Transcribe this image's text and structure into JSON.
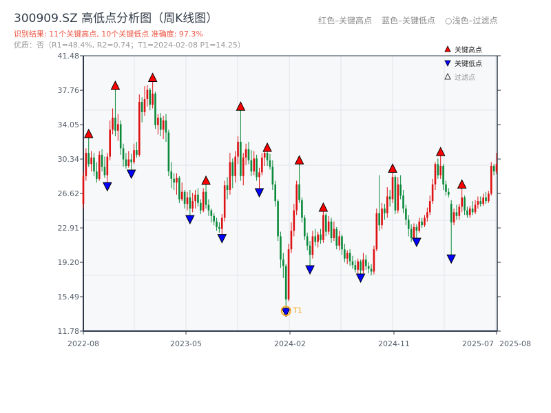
{
  "title": "300909.SZ 高低点分析图（周K线图）",
  "result_line": "识别结果: 11个关键高点, 10个关键低点   准确度: 97.3%",
  "quality_line": "优质：否（R1=48.4%, R2=0.74；T1=2024-02-08 P1=14.25）",
  "top_hint": {
    "red": "红色–关键高点",
    "blue": "蓝色–关键低点",
    "light": "○浅色–过滤点"
  },
  "legend": [
    {
      "label": "关键高点",
      "color": "#ff0000",
      "shape": "triangle-up"
    },
    {
      "label": "关键低点",
      "color": "#0000ff",
      "shape": "triangle-down"
    },
    {
      "label": "过滤点",
      "color": "#ffffff",
      "shape": "triangle-up-outline"
    }
  ],
  "colors": {
    "up": "#dd1111",
    "down": "#0a8a3a",
    "high": "#ff0000",
    "low": "#0000ff",
    "t1": "#f5a623",
    "bg": "#f7f8fa"
  },
  "chart_data": {
    "type": "candlestick",
    "title": "300909.SZ 高低点分析图（周K线图）",
    "ylim": [
      11.78,
      41.48
    ],
    "yticks": [
      "11.78",
      "15.49",
      "19.20",
      "22.91",
      "26.62",
      "30.34",
      "34.05",
      "37.76",
      "41.48"
    ],
    "xticks": [
      {
        "label": "2022-08",
        "i": 0
      },
      {
        "label": "2023-05",
        "i": 38.5
      },
      {
        "label": "2024-02",
        "i": 77.5
      },
      {
        "label": "2024-11",
        "i": 116.5
      },
      {
        "label": "2025-07",
        "i": 155
      },
      {
        "label": "2025-08",
        "i": 155
      }
    ],
    "grid": true,
    "legend_position": "top-right",
    "ohlc": [
      [
        25.5,
        29,
        25,
        28.5
      ],
      [
        28.5,
        31.5,
        28,
        31
      ],
      [
        31,
        32.64,
        29.5,
        29.8
      ],
      [
        29.8,
        31.2,
        29,
        30.5
      ],
      [
        30.5,
        31,
        28.5,
        29
      ],
      [
        29,
        30,
        27.8,
        28.2
      ],
      [
        28.2,
        31.2,
        28,
        30.8
      ],
      [
        30.8,
        31.4,
        29,
        29.5
      ],
      [
        29.5,
        30.6,
        28.3,
        28.6
      ],
      [
        28.6,
        31,
        27.8,
        30.6
      ],
      [
        30.6,
        34.5,
        30.2,
        33.5
      ],
      [
        33.5,
        35.8,
        33,
        34.8
      ],
      [
        34.8,
        37.84,
        32.8,
        33.4
      ],
      [
        33.4,
        35.2,
        32.3,
        34.1
      ],
      [
        34.1,
        34.5,
        30.8,
        31.5
      ],
      [
        31.5,
        32,
        29.5,
        30.3
      ],
      [
        30.3,
        31,
        29.3,
        29.6
      ],
      [
        29.6,
        31.2,
        29.4,
        30.3
      ],
      [
        30.3,
        30.9,
        29.15,
        30
      ],
      [
        30,
        32,
        29.8,
        31.3
      ],
      [
        31.3,
        32.2,
        30.5,
        30.8
      ],
      [
        30.8,
        37.3,
        30.6,
        36.5
      ],
      [
        36.5,
        37,
        34.3,
        35.4
      ],
      [
        35.4,
        38.2,
        35,
        36.8
      ],
      [
        36.8,
        38.3,
        36,
        37.8
      ],
      [
        37.8,
        38,
        35.6,
        36.2
      ],
      [
        36.2,
        38.7,
        35.8,
        37.4
      ],
      [
        37.4,
        37.6,
        33.6,
        34
      ],
      [
        34,
        35.2,
        33,
        34.8
      ],
      [
        34.8,
        35.3,
        32.8,
        33.5
      ],
      [
        33.5,
        35,
        32.5,
        34.5
      ],
      [
        34.5,
        35.2,
        32.2,
        33.2
      ],
      [
        33.2,
        33.5,
        28.5,
        29
      ],
      [
        29,
        30,
        27.2,
        28.2
      ],
      [
        28.2,
        28.8,
        27,
        27.8
      ],
      [
        27.8,
        28.8,
        26.5,
        28.3
      ],
      [
        28.3,
        28.5,
        25.6,
        26
      ],
      [
        26,
        27.8,
        25.8,
        26.8
      ],
      [
        26.8,
        27,
        25,
        25.5
      ],
      [
        25.5,
        26.8,
        24.8,
        26.2
      ],
      [
        26.2,
        27,
        24.25,
        25
      ],
      [
        25,
        26.7,
        24.6,
        25.8
      ],
      [
        25.8,
        27,
        25,
        26.5
      ],
      [
        26.5,
        27.2,
        25.2,
        25.6
      ],
      [
        25.6,
        26,
        24.4,
        24.8
      ],
      [
        24.8,
        27.2,
        24.6,
        26.8
      ],
      [
        26.8,
        27.6,
        25,
        25.4
      ],
      [
        25.4,
        26,
        24.2,
        24.8
      ],
      [
        24.8,
        25,
        23.5,
        24.2
      ],
      [
        24.2,
        24.5,
        23.2,
        23.6
      ],
      [
        23.6,
        24,
        22.6,
        23
      ],
      [
        23,
        23.5,
        22.4,
        22.8
      ],
      [
        22.8,
        24.4,
        22.2,
        24
      ],
      [
        24,
        28,
        23.6,
        27.5
      ],
      [
        27.5,
        28.4,
        26,
        27
      ],
      [
        27,
        31,
        26.5,
        30
      ],
      [
        30,
        30.4,
        27.2,
        28.5
      ],
      [
        28.5,
        31.2,
        27.8,
        30.6
      ],
      [
        30.6,
        32.8,
        29.8,
        32.2
      ],
      [
        32.2,
        35.6,
        28,
        28.5
      ],
      [
        28.5,
        31,
        27.5,
        30.5
      ],
      [
        30.5,
        32,
        29.7,
        31.4
      ],
      [
        31.4,
        32.2,
        29.8,
        30.2
      ],
      [
        30.2,
        31.3,
        28.5,
        29
      ],
      [
        29,
        31.2,
        28.6,
        30.4
      ],
      [
        30.4,
        30.8,
        28,
        28.4
      ],
      [
        28.4,
        29.4,
        27.15,
        28.9
      ],
      [
        28.9,
        31,
        28.6,
        30.5
      ],
      [
        30.5,
        31.2,
        29.6,
        31
      ],
      [
        31,
        31.16,
        29.6,
        30.2
      ],
      [
        30.2,
        30.9,
        29.2,
        29.5
      ],
      [
        29.5,
        30.2,
        27,
        27.6
      ],
      [
        27.6,
        28,
        25.2,
        25.8
      ],
      [
        25.8,
        26,
        21.5,
        22
      ],
      [
        22,
        22.5,
        18.6,
        19.5
      ],
      [
        19.5,
        20.2,
        17.5,
        18.8
      ],
      [
        18.8,
        19,
        14.25,
        15.2
      ],
      [
        15.2,
        21.2,
        15,
        20.6
      ],
      [
        20.6,
        23.5,
        20.2,
        22.6
      ],
      [
        22.6,
        25.5,
        22,
        24.8
      ],
      [
        24.8,
        28,
        24.3,
        27.6
      ],
      [
        27.6,
        29.8,
        25.6,
        25.9
      ],
      [
        25.9,
        26.2,
        23.5,
        24
      ],
      [
        24,
        24.3,
        21.6,
        22
      ],
      [
        22,
        22.4,
        20.5,
        21
      ],
      [
        21,
        21.5,
        18.83,
        20
      ],
      [
        20,
        22.6,
        19.6,
        22
      ],
      [
        22,
        22.8,
        21,
        21.4
      ],
      [
        21.4,
        22.5,
        20.8,
        22.2
      ],
      [
        22.2,
        22.8,
        21.2,
        21.6
      ],
      [
        21.6,
        24.7,
        21.3,
        24.3
      ],
      [
        24.3,
        24.5,
        22,
        22.5
      ],
      [
        22.5,
        24.2,
        22.2,
        23.6
      ],
      [
        23.6,
        24,
        21.3,
        21.8
      ],
      [
        21.8,
        23.6,
        21.5,
        22.8
      ],
      [
        22.8,
        23,
        20.6,
        21
      ],
      [
        21,
        22.6,
        20.5,
        22
      ],
      [
        22,
        22.2,
        20,
        20.6
      ],
      [
        20.6,
        21.2,
        19.2,
        19.6
      ],
      [
        19.6,
        20.5,
        19,
        20.2
      ],
      [
        20.2,
        20.6,
        18.8,
        19.3
      ],
      [
        19.3,
        19.9,
        18.5,
        18.9
      ],
      [
        18.9,
        19.4,
        18.1,
        18.4
      ],
      [
        18.4,
        19.6,
        18,
        19.3
      ],
      [
        19.3,
        19.5,
        17.94,
        18.3
      ],
      [
        18.3,
        20.2,
        18,
        19.5
      ],
      [
        19.5,
        20,
        18.4,
        18.8
      ],
      [
        18.8,
        19.2,
        18,
        18.5
      ],
      [
        18.5,
        19,
        17.8,
        18.2
      ],
      [
        18.2,
        21,
        17.9,
        20.6
      ],
      [
        20.6,
        25,
        20.4,
        24.5
      ],
      [
        24.5,
        28.6,
        22.6,
        23.2
      ],
      [
        23.2,
        25.6,
        22.8,
        25
      ],
      [
        25,
        25.5,
        23.8,
        24.5
      ],
      [
        24.5,
        27.3,
        24,
        26.3
      ],
      [
        26.3,
        27,
        25.2,
        26
      ],
      [
        26,
        28.9,
        25.6,
        28.4
      ],
      [
        28.4,
        28.6,
        24.4,
        24.8
      ],
      [
        24.8,
        28.4,
        24.5,
        27.6
      ],
      [
        27.6,
        28.6,
        26,
        26.4
      ],
      [
        26.4,
        27,
        24.5,
        25
      ],
      [
        25,
        25.4,
        23.2,
        23.8
      ],
      [
        23.8,
        24.3,
        22,
        22.8
      ],
      [
        22.8,
        23.3,
        21.4,
        21.8
      ],
      [
        21.8,
        23.4,
        21.6,
        23
      ],
      [
        23,
        23.3,
        21.8,
        22.6
      ],
      [
        22.6,
        24,
        22.4,
        23.6
      ],
      [
        23.6,
        24,
        22.9,
        23.2
      ],
      [
        23.2,
        24.3,
        23,
        24
      ],
      [
        24,
        25.1,
        23.6,
        24.6
      ],
      [
        24.6,
        26.4,
        24.3,
        25.8
      ],
      [
        25.8,
        28.2,
        25.5,
        27.6
      ],
      [
        27.6,
        30,
        27,
        29.8
      ],
      [
        29.8,
        30.4,
        28.2,
        28.6
      ],
      [
        28.6,
        30.7,
        28.2,
        29.6
      ],
      [
        29.6,
        29.8,
        27,
        27.6
      ],
      [
        27.6,
        28,
        26.4,
        26.8
      ],
      [
        26.8,
        27.2,
        26.2,
        26.5
      ],
      [
        25.5,
        25.9,
        20,
        23.5
      ],
      [
        23.5,
        25,
        23.2,
        24.6
      ],
      [
        24.6,
        25.4,
        23.8,
        24.2
      ],
      [
        24.2,
        25.5,
        23.8,
        25.2
      ],
      [
        25.2,
        27.2,
        24.6,
        26.2
      ],
      [
        26.2,
        26.4,
        24.3,
        24.8
      ],
      [
        24.8,
        25.2,
        24,
        24.3
      ],
      [
        24.3,
        25.3,
        24,
        25
      ],
      [
        25,
        25.8,
        24.3,
        24.6
      ],
      [
        24.6,
        25.9,
        24.4,
        25.4
      ],
      [
        25.4,
        26.3,
        25,
        25.8
      ],
      [
        25.8,
        26.3,
        25.2,
        25.5
      ],
      [
        25.5,
        26.6,
        25.3,
        26.2
      ],
      [
        26.2,
        26.8,
        25.5,
        25.8
      ],
      [
        25.8,
        26.9,
        25.6,
        26.6
      ],
      [
        26.6,
        30,
        26.4,
        29.6
      ],
      [
        29.6,
        29.8,
        28.6,
        29
      ],
      [
        29,
        31,
        28.7,
        29.8
      ]
    ],
    "key_highs": [
      2,
      12,
      26,
      46,
      59,
      69,
      81,
      90,
      116,
      134,
      142
    ],
    "key_lows": [
      9,
      18,
      40,
      52,
      66,
      76,
      85,
      104,
      125,
      138
    ],
    "t1": {
      "label": "T1",
      "i": 76,
      "date": "2024-02-08",
      "price": 14.25
    }
  }
}
